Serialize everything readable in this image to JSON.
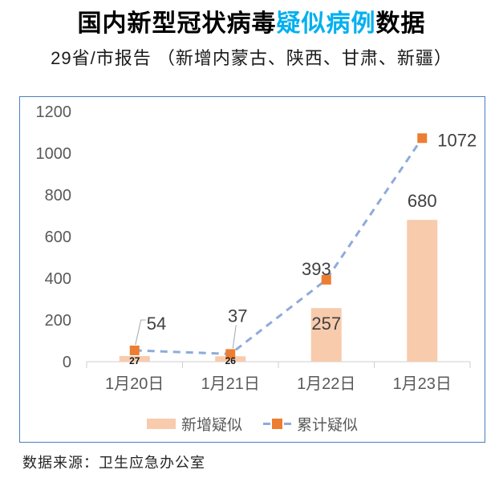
{
  "title": {
    "text_black_1": "国内新型冠状病毒",
    "text_highlight": "疑似病例",
    "text_black_2": "数据"
  },
  "subtitle": "29省/市报告 （新增内蒙古、陕西、甘肃、新疆）",
  "source_note": "数据来源：卫生应急办公室",
  "colors": {
    "highlight": "#00B0F0",
    "bar": "#F8CBAD",
    "line": "#8FAADC",
    "marker": "#ED7D31",
    "axis_text": "#595959",
    "data_label": "#404040",
    "chart_border": "#4A7EC0"
  },
  "chart_data": {
    "type": "bar",
    "combo": "bar + dashed line with square markers",
    "title": "国内新型冠状病毒疑似病例数据",
    "subtitle": "29省/市报告 （新增内蒙古、陕西、甘肃、新疆）",
    "categories": [
      "1月20日",
      "1月21日",
      "1月22日",
      "1月23日"
    ],
    "series": [
      {
        "name": "新增疑似",
        "type": "bar",
        "values": [
          27,
          26,
          257,
          680
        ]
      },
      {
        "name": "累计疑似",
        "type": "line",
        "dashed": true,
        "values": [
          54,
          37,
          393,
          1072
        ]
      }
    ],
    "xlabel": "",
    "ylabel": "",
    "ylim": [
      0,
      1200
    ],
    "yticks": [
      0,
      200,
      400,
      600,
      800,
      1000,
      1200
    ],
    "grid": false,
    "legend_position": "bottom"
  }
}
